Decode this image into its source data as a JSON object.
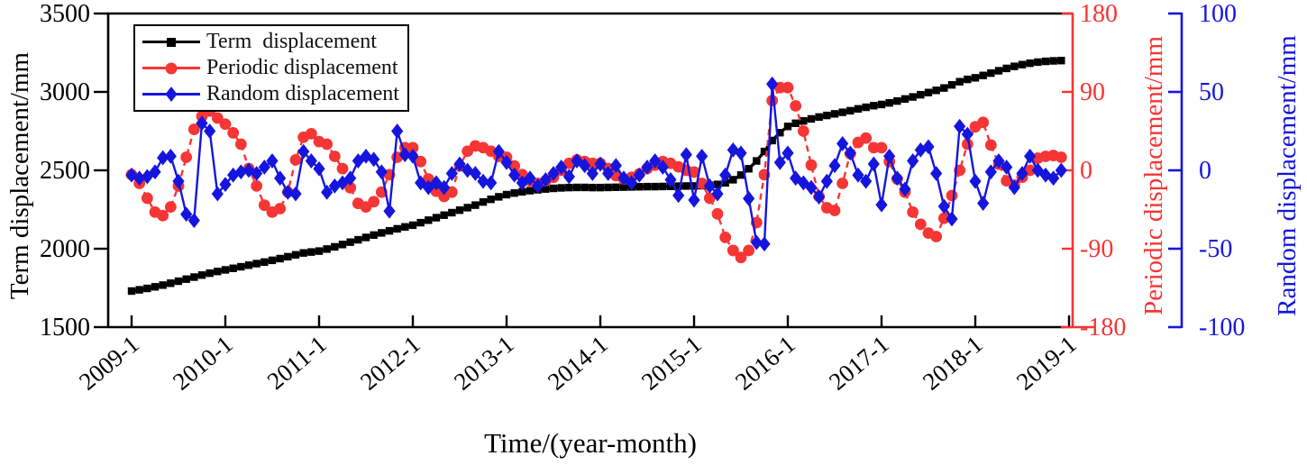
{
  "chart_data": {
    "type": "line",
    "title": "",
    "xlabel": "Time/(year-month)",
    "x_unit": "month",
    "x_start": "2009-1",
    "x_end": "2018-12",
    "months_per_tick": 12,
    "x_tick_labels": [
      "2009-1",
      "2010-1",
      "2011-1",
      "2012-1",
      "2013-1",
      "2014-1",
      "2015-1",
      "2016-1",
      "2017-1",
      "2018-1",
      "2019-1"
    ],
    "grid": false,
    "legend_position": "top-left",
    "axes": {
      "left": {
        "label": "Term  displacement/mm",
        "ticks": [
          1500,
          2000,
          2500,
          3000,
          3500
        ],
        "range": [
          1500,
          3500
        ],
        "color": "#000000"
      },
      "right_periodic": {
        "label": "Periodic displacement/mm",
        "ticks": [
          -180,
          -90,
          0,
          90,
          180
        ],
        "range": [
          -180,
          180
        ],
        "color": "#f63535"
      },
      "right_random": {
        "label": "Random displacement/mm",
        "ticks": [
          -100,
          -50,
          0,
          50,
          100
        ],
        "range": [
          -100,
          100
        ],
        "color": "#1515dd"
      }
    },
    "series": [
      {
        "name": "Term  displacement",
        "axis": "left",
        "color": "#000000",
        "marker": "square",
        "line": "solid",
        "values": [
          1730,
          1738,
          1747,
          1757,
          1768,
          1780,
          1793,
          1806,
          1819,
          1832,
          1844,
          1855,
          1865,
          1875,
          1885,
          1895,
          1905,
          1915,
          1926,
          1937,
          1949,
          1961,
          1973,
          1979,
          1985,
          1998,
          2012,
          2027,
          2042,
          2057,
          2072,
          2087,
          2101,
          2114,
          2127,
          2139,
          2150,
          2166,
          2182,
          2198,
          2214,
          2230,
          2246,
          2262,
          2278,
          2298,
          2315,
          2331,
          2345,
          2355,
          2363,
          2370,
          2376,
          2381,
          2385,
          2388,
          2390,
          2391,
          2391,
          2390,
          2390,
          2391,
          2392,
          2393,
          2394,
          2395,
          2396,
          2396,
          2397,
          2398,
          2399,
          2400,
          2400,
          2402,
          2405,
          2410,
          2420,
          2440,
          2470,
          2510,
          2560,
          2620,
          2690,
          2740,
          2780,
          2800,
          2815,
          2828,
          2840,
          2850,
          2860,
          2870,
          2880,
          2892,
          2902,
          2912,
          2920,
          2930,
          2942,
          2955,
          2968,
          2982,
          2996,
          3010,
          3025,
          3045,
          3065,
          3080,
          3090,
          3105,
          3120,
          3135,
          3150,
          3163,
          3174,
          3183,
          3190,
          3195,
          3198,
          3200
        ]
      },
      {
        "name": "Periodic displacement",
        "axis": "right_periodic",
        "color": "#f63535",
        "marker": "circle",
        "line": "dash",
        "values": [
          -5,
          -15,
          -32,
          -48,
          -52,
          -42,
          -18,
          15,
          47,
          62,
          68,
          60,
          53,
          43,
          30,
          2,
          -18,
          -40,
          -48,
          -44,
          -25,
          12,
          38,
          42,
          33,
          30,
          16,
          2,
          -20,
          -38,
          -42,
          -36,
          -25,
          -5,
          15,
          26,
          26,
          10,
          -10,
          -24,
          -30,
          -25,
          5,
          22,
          28,
          26,
          22,
          16,
          15,
          5,
          -5,
          -12,
          -15,
          -12,
          -8,
          0,
          8,
          12,
          10,
          8,
          8,
          2,
          -6,
          -10,
          -8,
          -4,
          2,
          6,
          10,
          8,
          4,
          0,
          -2,
          -15,
          -32,
          -50,
          -77,
          -92,
          -100,
          -92,
          -60,
          -5,
          80,
          95,
          95,
          74,
          45,
          6,
          -30,
          -43,
          -46,
          -15,
          19,
          32,
          37,
          26,
          26,
          10,
          -10,
          -25,
          -48,
          -62,
          -72,
          -76,
          -55,
          -29,
          0,
          30,
          50,
          55,
          29,
          7,
          -12,
          -17,
          -8,
          0,
          14,
          16,
          17,
          15
        ]
      },
      {
        "name": "Random displacement",
        "axis": "right_random",
        "color": "#1515dd",
        "marker": "diamond",
        "line": "solid",
        "values": [
          -3,
          -5,
          -4,
          -1,
          8,
          9,
          -7,
          -28,
          -32,
          30,
          25,
          -15,
          -9,
          -3,
          -1,
          0,
          -2,
          2,
          6,
          -5,
          -14,
          -15,
          12,
          6,
          1,
          -14,
          -10,
          -8,
          -5,
          6,
          9,
          7,
          -1,
          -26,
          25,
          10,
          9,
          -8,
          -11,
          -8,
          -11,
          -2,
          4,
          0,
          -2,
          -7,
          -8,
          12,
          5,
          -3,
          -8,
          -5,
          -10,
          -6,
          -2,
          2,
          -4,
          6,
          3,
          -2,
          4,
          -2,
          3,
          -5,
          -8,
          -3,
          2,
          6,
          2,
          -6,
          -16,
          10,
          -19,
          9,
          -10,
          -15,
          -3,
          13,
          11,
          -18,
          -46,
          -47,
          55,
          5,
          11,
          -5,
          -8,
          -11,
          -17,
          -7,
          3,
          17,
          11,
          -3,
          -7,
          4,
          -22,
          9,
          -5,
          -12,
          6,
          13,
          15,
          -2,
          -23,
          -31,
          28,
          23,
          -7,
          -21,
          -1,
          6,
          2,
          -11,
          -2,
          9,
          0,
          -3,
          -5,
          0
        ]
      }
    ]
  }
}
